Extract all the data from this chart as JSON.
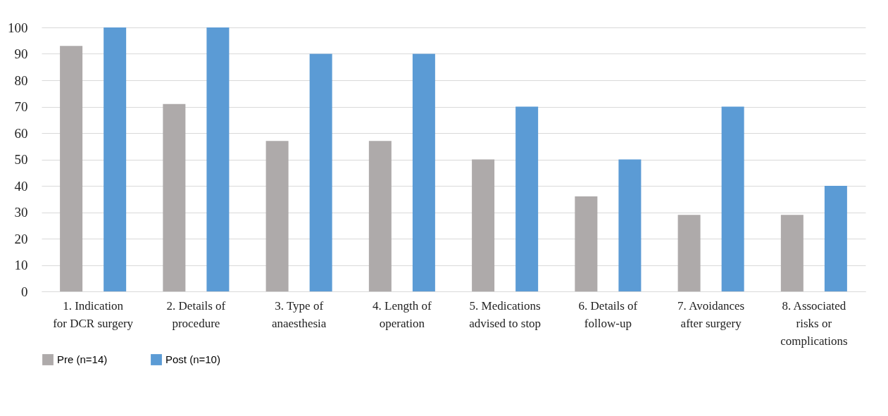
{
  "chart_data": {
    "type": "bar",
    "categories": [
      "1. Indication for DCR surgery",
      "2. Details of procedure",
      "3. Type of anaesthesia",
      "4. Length of operation",
      "5. Medications advised to stop",
      "6. Details of follow-up",
      "7. Avoidances after surgery",
      "8. Associated risks or complications"
    ],
    "series": [
      {
        "name": "Pre (n=14)",
        "color": "#aeaaaa",
        "values": [
          93,
          71,
          57,
          57,
          50,
          36,
          29,
          29
        ]
      },
      {
        "name": "Post (n=10)",
        "color": "#5b9bd5",
        "values": [
          100,
          100,
          90,
          90,
          70,
          50,
          70,
          40
        ]
      }
    ],
    "ylim": [
      0,
      100
    ],
    "yticks": [
      0,
      10,
      20,
      30,
      40,
      50,
      60,
      70,
      80,
      90,
      100
    ],
    "grid": "y",
    "legend": "bottom"
  }
}
